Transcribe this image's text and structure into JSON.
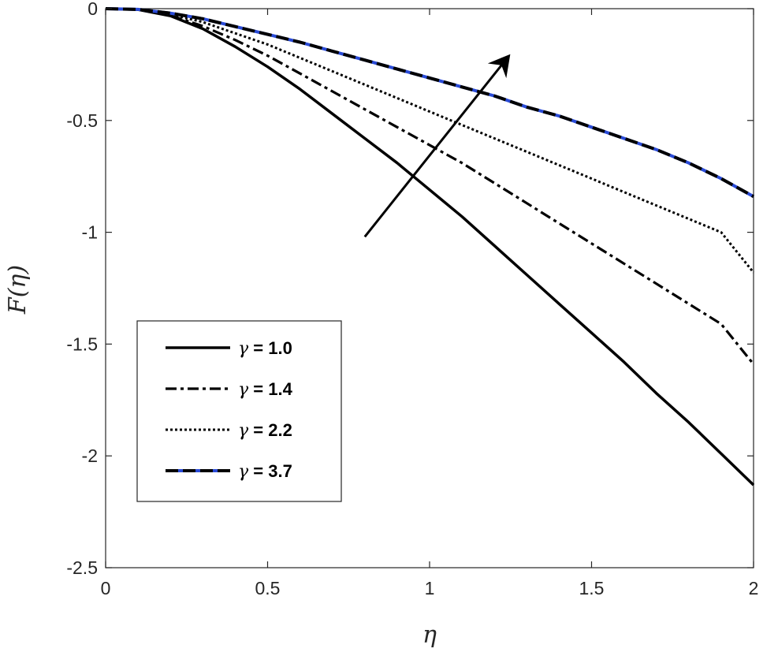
{
  "chart_data": {
    "type": "line",
    "xlabel": "η",
    "ylabel": "F(η)",
    "xlim": [
      0,
      2
    ],
    "ylim": [
      -2.5,
      0
    ],
    "xticks": [
      0,
      0.5,
      1,
      1.5,
      2
    ],
    "yticks": [
      0,
      -0.5,
      -1,
      -1.5,
      -2,
      -2.5
    ],
    "xtick_labels": [
      "0",
      "0.5",
      "1",
      "1.5",
      "2"
    ],
    "ytick_labels": [
      "0",
      "-0.5",
      "-1",
      "-1.5",
      "-2",
      "-2.5"
    ],
    "grid": false,
    "legend_position": "bottom-left",
    "x": [
      0,
      0.1,
      0.2,
      0.3,
      0.4,
      0.5,
      0.6,
      0.7,
      0.8,
      0.9,
      1.0,
      1.1,
      1.2,
      1.3,
      1.4,
      1.5,
      1.6,
      1.7,
      1.8,
      1.9,
      2.0
    ],
    "series": [
      {
        "name": "γ = 1.0",
        "legend_symbol": "γ",
        "legend_value": " = 1.0",
        "style": "solid",
        "color": "#000000",
        "values": [
          0,
          -0.004,
          -0.032,
          -0.09,
          -0.17,
          -0.26,
          -0.36,
          -0.47,
          -0.58,
          -0.69,
          -0.81,
          -0.93,
          -1.06,
          -1.19,
          -1.32,
          -1.45,
          -1.58,
          -1.72,
          -1.85,
          -1.99,
          -2.13
        ]
      },
      {
        "name": "γ = 1.4",
        "legend_symbol": "γ",
        "legend_value": " = 1.4",
        "style": "dashdot",
        "color": "#000000",
        "values": [
          0,
          -0.004,
          -0.03,
          -0.078,
          -0.14,
          -0.21,
          -0.29,
          -0.37,
          -0.45,
          -0.53,
          -0.61,
          -0.69,
          -0.78,
          -0.87,
          -0.96,
          -1.05,
          -1.14,
          -1.23,
          -1.32,
          -1.41,
          -1.59
        ]
      },
      {
        "name": "γ = 2.2",
        "legend_symbol": "γ",
        "legend_value": " = 2.2",
        "style": "dotted",
        "color": "#000000",
        "values": [
          0,
          -0.004,
          -0.025,
          -0.06,
          -0.11,
          -0.16,
          -0.22,
          -0.28,
          -0.34,
          -0.4,
          -0.46,
          -0.52,
          -0.58,
          -0.64,
          -0.7,
          -0.76,
          -0.82,
          -0.88,
          -0.94,
          -1.0,
          -1.18
        ]
      },
      {
        "name": "γ = 3.7",
        "legend_symbol": "γ",
        "legend_value": " = 3.7",
        "style": "dashed-blue",
        "color": "#000000",
        "accent_color": "#2a4bd7",
        "values": [
          0,
          -0.003,
          -0.02,
          -0.045,
          -0.08,
          -0.115,
          -0.15,
          -0.19,
          -0.23,
          -0.27,
          -0.31,
          -0.35,
          -0.39,
          -0.44,
          -0.48,
          -0.53,
          -0.58,
          -0.63,
          -0.69,
          -0.76,
          -0.84
        ]
      }
    ],
    "annotations": [
      {
        "type": "arrow",
        "from": [
          0.8,
          -1.02
        ],
        "to": [
          1.24,
          -0.22
        ]
      }
    ]
  }
}
